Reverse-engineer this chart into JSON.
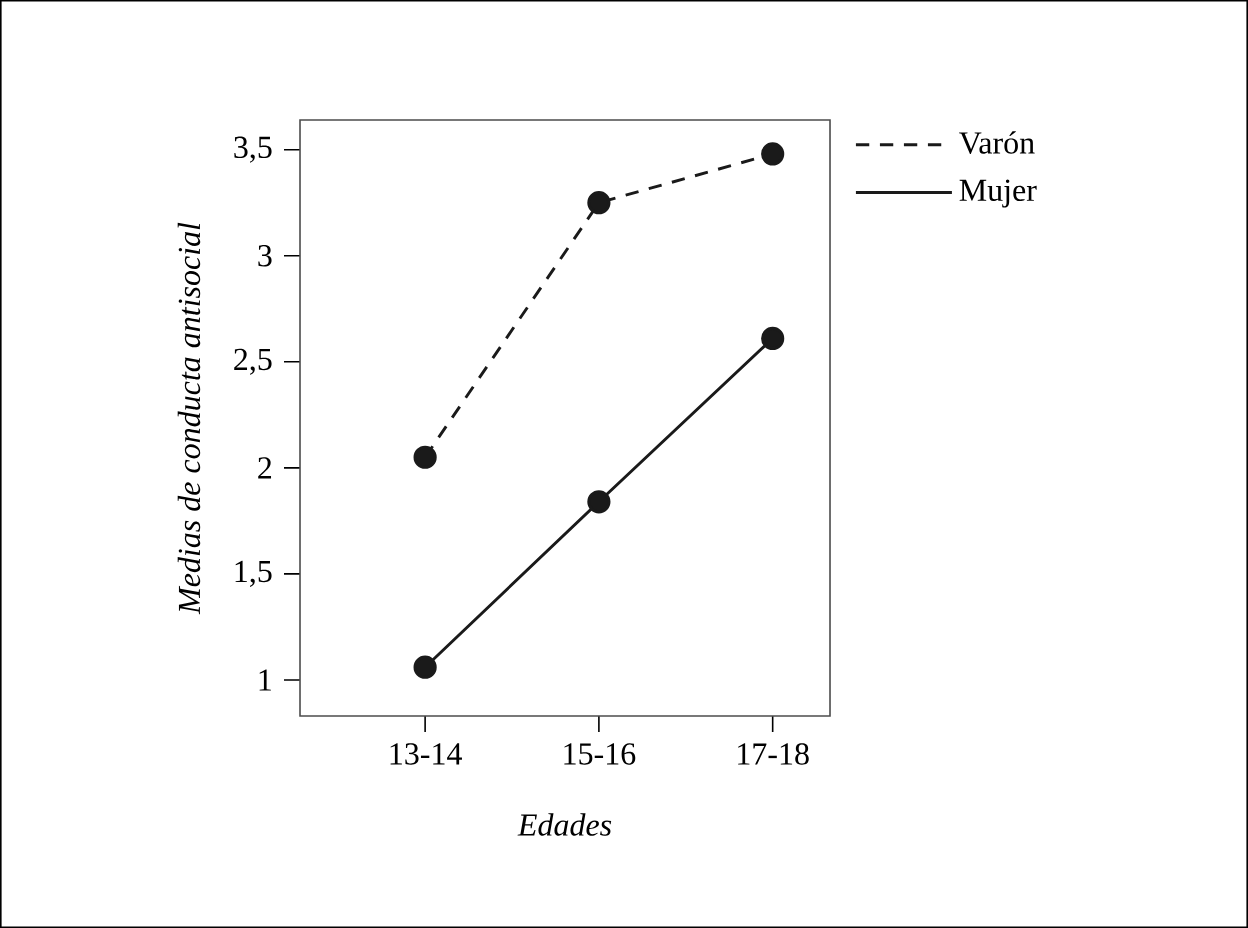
{
  "chart_data": {
    "type": "line",
    "xlabel": "Edades",
    "ylabel": "Medias de conducta antisocial",
    "categories": [
      "13-14",
      "15-16",
      "17-18"
    ],
    "series": [
      {
        "name": "Varón",
        "color": "#1a1a1a",
        "line_style": "dashed",
        "values": [
          2.05,
          3.25,
          3.48
        ]
      },
      {
        "name": "Mujer",
        "color": "#1a1a1a",
        "line_style": "solid",
        "values": [
          1.06,
          1.84,
          2.61
        ]
      }
    ],
    "ylim": [
      0.83,
      3.64
    ],
    "yticks": [
      1,
      {
        "value": 1.5,
        "label": "1,5"
      },
      2,
      {
        "value": 2.5,
        "label": "2,5"
      },
      3,
      {
        "value": 3.5,
        "label": "3,5"
      }
    ],
    "marker": "circle",
    "legend": "top right",
    "grid": false
  }
}
